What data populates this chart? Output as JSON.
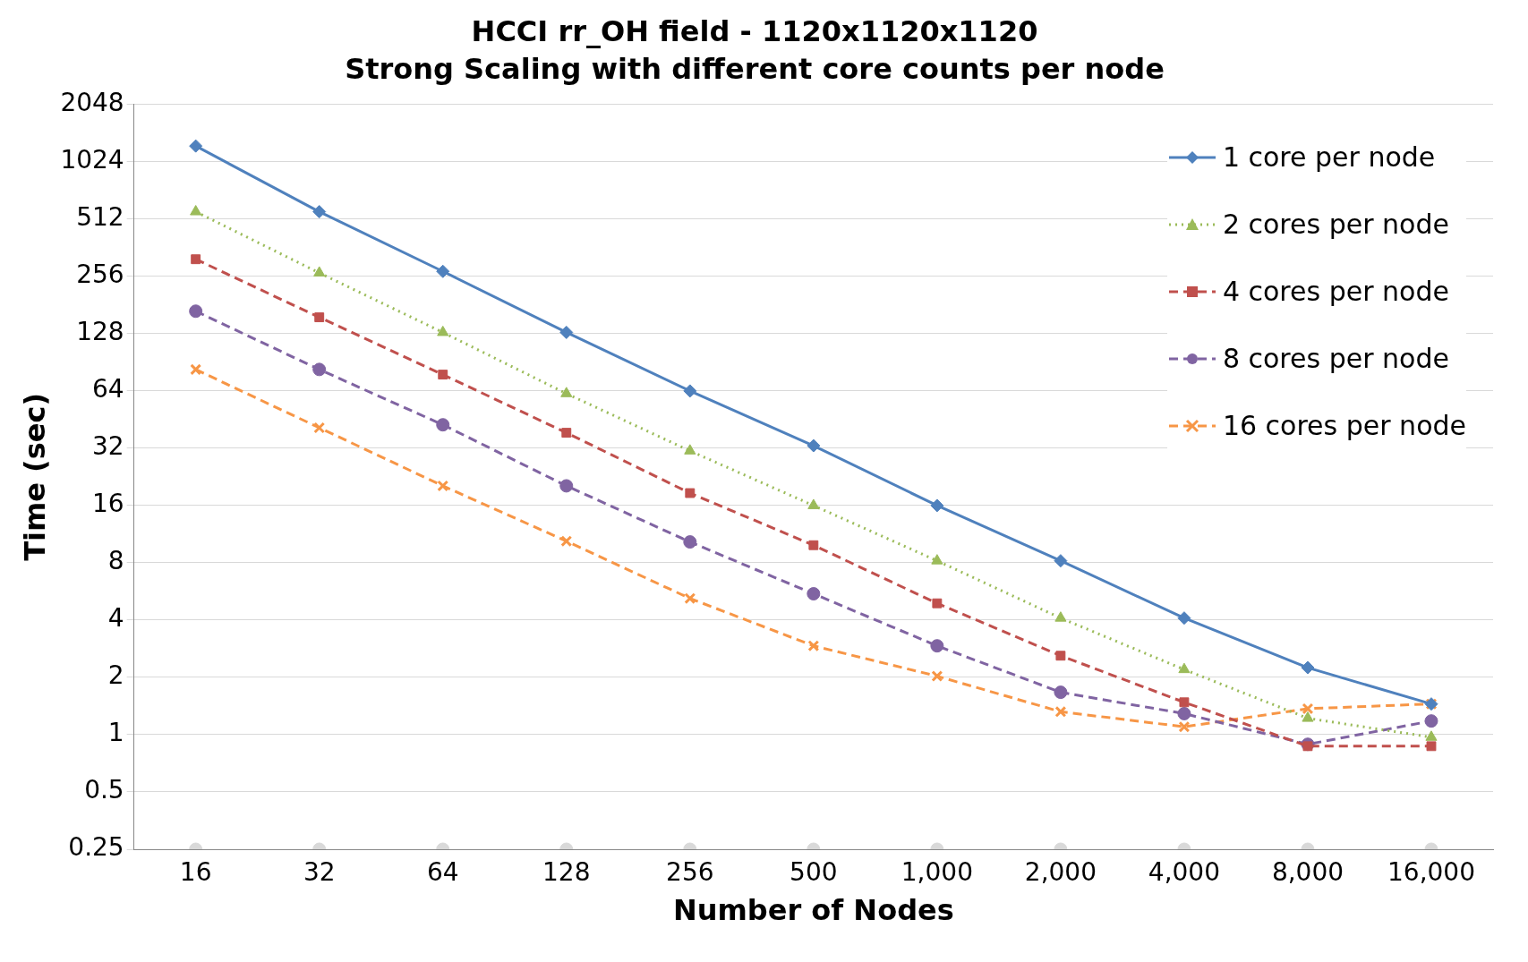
{
  "chart_data": {
    "type": "line",
    "title": "HCCI rr_OH field - 1120x1120x1120",
    "subtitle": "Strong Scaling with different core counts per node",
    "xlabel": "Number of Nodes",
    "ylabel": "Time (sec)",
    "categories": [
      "16",
      "32",
      "64",
      "128",
      "256",
      "500",
      "1,000",
      "2,000",
      "4,000",
      "8,000",
      "16,000"
    ],
    "series": [
      {
        "name": "1 core per node",
        "color": "#4f81bd",
        "marker": "diamond",
        "line_style": "solid",
        "values": [
          1240,
          560,
          272,
          130,
          64,
          33,
          16,
          8.2,
          4.1,
          2.25,
          1.45
        ]
      },
      {
        "name": "2 cores per node",
        "color": "#9bbb59",
        "marker": "triangle",
        "line_style": "dotted",
        "values": [
          560,
          267,
          130,
          62,
          31,
          16,
          8.2,
          4.1,
          2.2,
          1.22,
          0.97
        ]
      },
      {
        "name": "4 cores per node",
        "color": "#c0504d",
        "marker": "square",
        "line_style": "dashed",
        "values": [
          315,
          156,
          78,
          38.6,
          18.6,
          9.9,
          4.9,
          2.6,
          1.48,
          0.87,
          0.87
        ]
      },
      {
        "name": "8 cores per node",
        "color": "#8064a2",
        "marker": "circle",
        "line_style": "dashed",
        "values": [
          168,
          83,
          42.5,
          20.3,
          10.3,
          5.5,
          2.93,
          1.67,
          1.29,
          0.89,
          1.18
        ]
      },
      {
        "name": "16 cores per node",
        "color": "#f79646",
        "marker": "cross",
        "line_style": "dashed",
        "values": [
          83,
          41,
          20.3,
          10.4,
          5.2,
          2.93,
          2.03,
          1.32,
          1.1,
          1.37,
          1.45
        ]
      },
      {
        "type": "scatter",
        "color": "#d9d9d9",
        "marker": "circle",
        "values": [
          0.25,
          0.25,
          0.25,
          0.25,
          0.25,
          0.25,
          0.25,
          0.25,
          0.25,
          0.25,
          0.25
        ]
      }
    ],
    "log": "y",
    "ylim": [
      0.25,
      2048
    ],
    "yticks": [
      0.25,
      0.5,
      1,
      2,
      4,
      8,
      16,
      32,
      64,
      128,
      256,
      512,
      1024,
      2048
    ],
    "grid": "y",
    "legend": "top right"
  }
}
